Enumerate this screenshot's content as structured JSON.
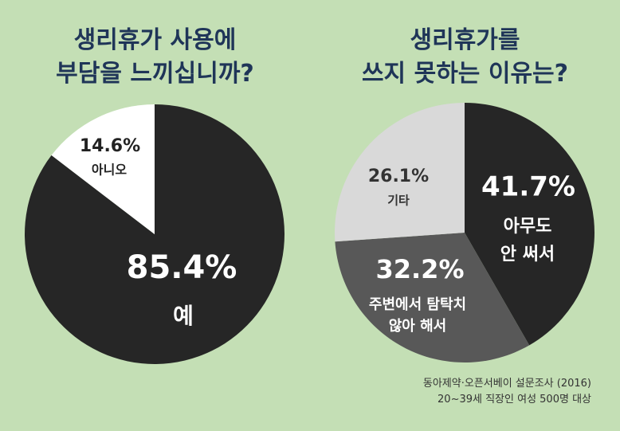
{
  "chart_data": [
    {
      "type": "pie",
      "title": [
        "생리휴가 사용에",
        "부담을 느끼십니까?"
      ],
      "slices": [
        {
          "label": "예",
          "value": 85.4,
          "display": "85.4%",
          "color": "#262626",
          "text_color": "#ffffff"
        },
        {
          "label": "아니오",
          "value": 14.6,
          "display": "14.6%",
          "color": "#ffffff",
          "text_color": "#222222"
        }
      ]
    },
    {
      "type": "pie",
      "title": [
        "생리휴가를",
        "쓰지 못하는 이유는?"
      ],
      "slices": [
        {
          "label": [
            "아무도",
            "안 써서"
          ],
          "value": 41.7,
          "display": "41.7%",
          "color": "#262626",
          "text_color": "#ffffff"
        },
        {
          "label": [
            "주변에서 탐탁치",
            "않아 해서"
          ],
          "value": 32.2,
          "display": "32.2%",
          "color": "#585858",
          "text_color": "#ffffff"
        },
        {
          "label": [
            "기타"
          ],
          "value": 26.1,
          "display": "26.1%",
          "color": "#d9d9d9",
          "text_color": "#333333"
        }
      ]
    }
  ],
  "source": [
    "동아제약·오픈서베이 설문조사 (2016)",
    "20~39세 직장인 여성 500명 대상"
  ],
  "colors": {
    "background": "#c4dfb5",
    "title": "#1f3558"
  }
}
